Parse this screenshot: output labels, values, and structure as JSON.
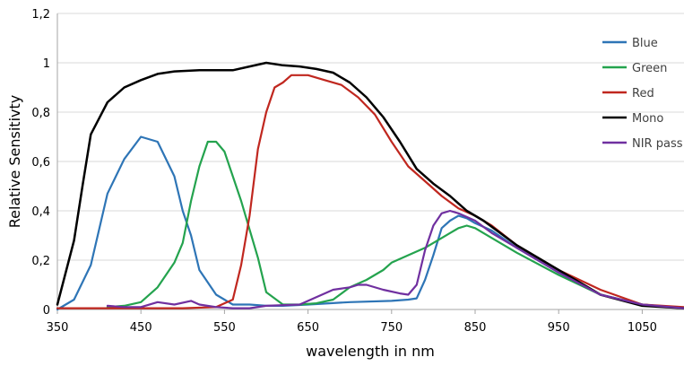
{
  "chart_data": {
    "type": "line",
    "title": "",
    "xlabel": "wavelength in nm",
    "ylabel": "Relative Sensitivty",
    "xlim": [
      350,
      1100
    ],
    "ylim": [
      0,
      1.2
    ],
    "x_ticks": [
      350,
      450,
      550,
      650,
      750,
      850,
      950,
      1050
    ],
    "x_tick_labels": [
      "350",
      "450",
      "550",
      "650",
      "750",
      "850",
      "950",
      "1050"
    ],
    "y_ticks": [
      0,
      0.2,
      0.4,
      0.6,
      0.8,
      1.0,
      1.2
    ],
    "y_tick_labels": [
      "0",
      "0,2",
      "0,4",
      "0,6",
      "0,8",
      "1",
      "1,2"
    ],
    "grid": "horizontal",
    "legend_position": "right",
    "series": [
      {
        "name": "Blue",
        "color": "#2E75B6",
        "points": [
          [
            350,
            0.0
          ],
          [
            370,
            0.04
          ],
          [
            390,
            0.18
          ],
          [
            410,
            0.47
          ],
          [
            430,
            0.61
          ],
          [
            450,
            0.7
          ],
          [
            470,
            0.68
          ],
          [
            490,
            0.54
          ],
          [
            500,
            0.4
          ],
          [
            510,
            0.3
          ],
          [
            520,
            0.16
          ],
          [
            540,
            0.06
          ],
          [
            550,
            0.04
          ],
          [
            560,
            0.02
          ],
          [
            580,
            0.02
          ],
          [
            600,
            0.015
          ],
          [
            620,
            0.015
          ],
          [
            650,
            0.02
          ],
          [
            700,
            0.03
          ],
          [
            750,
            0.035
          ],
          [
            770,
            0.04
          ],
          [
            780,
            0.045
          ],
          [
            790,
            0.12
          ],
          [
            800,
            0.22
          ],
          [
            810,
            0.33
          ],
          [
            820,
            0.36
          ],
          [
            830,
            0.38
          ],
          [
            840,
            0.37
          ],
          [
            850,
            0.35
          ],
          [
            870,
            0.32
          ],
          [
            900,
            0.25
          ],
          [
            950,
            0.15
          ],
          [
            1000,
            0.06
          ],
          [
            1050,
            0.02
          ],
          [
            1100,
            0.005
          ]
        ]
      },
      {
        "name": "Green",
        "color": "#24A34E",
        "points": [
          [
            410,
            0.01
          ],
          [
            430,
            0.015
          ],
          [
            450,
            0.03
          ],
          [
            470,
            0.09
          ],
          [
            490,
            0.19
          ],
          [
            500,
            0.27
          ],
          [
            510,
            0.44
          ],
          [
            520,
            0.58
          ],
          [
            530,
            0.68
          ],
          [
            540,
            0.68
          ],
          [
            550,
            0.64
          ],
          [
            560,
            0.54
          ],
          [
            570,
            0.44
          ],
          [
            590,
            0.21
          ],
          [
            600,
            0.07
          ],
          [
            620,
            0.02
          ],
          [
            640,
            0.02
          ],
          [
            660,
            0.025
          ],
          [
            680,
            0.04
          ],
          [
            700,
            0.09
          ],
          [
            720,
            0.12
          ],
          [
            740,
            0.16
          ],
          [
            750,
            0.19
          ],
          [
            770,
            0.22
          ],
          [
            790,
            0.25
          ],
          [
            800,
            0.27
          ],
          [
            820,
            0.31
          ],
          [
            830,
            0.33
          ],
          [
            840,
            0.34
          ],
          [
            850,
            0.33
          ],
          [
            870,
            0.29
          ],
          [
            900,
            0.23
          ],
          [
            950,
            0.14
          ],
          [
            1000,
            0.06
          ],
          [
            1050,
            0.02
          ],
          [
            1100,
            0.005
          ]
        ]
      },
      {
        "name": "Red",
        "color": "#C0271F",
        "points": [
          [
            350,
            0.005
          ],
          [
            400,
            0.005
          ],
          [
            450,
            0.005
          ],
          [
            500,
            0.005
          ],
          [
            540,
            0.01
          ],
          [
            560,
            0.04
          ],
          [
            570,
            0.18
          ],
          [
            580,
            0.38
          ],
          [
            590,
            0.65
          ],
          [
            600,
            0.8
          ],
          [
            610,
            0.9
          ],
          [
            620,
            0.92
          ],
          [
            630,
            0.95
          ],
          [
            650,
            0.95
          ],
          [
            670,
            0.93
          ],
          [
            690,
            0.91
          ],
          [
            710,
            0.86
          ],
          [
            730,
            0.79
          ],
          [
            750,
            0.68
          ],
          [
            770,
            0.58
          ],
          [
            790,
            0.52
          ],
          [
            810,
            0.46
          ],
          [
            830,
            0.41
          ],
          [
            850,
            0.38
          ],
          [
            870,
            0.34
          ],
          [
            900,
            0.26
          ],
          [
            950,
            0.16
          ],
          [
            1000,
            0.08
          ],
          [
            1050,
            0.02
          ],
          [
            1100,
            0.01
          ]
        ]
      },
      {
        "name": "Mono",
        "color": "#000000",
        "points": [
          [
            350,
            0.02
          ],
          [
            370,
            0.28
          ],
          [
            380,
            0.5
          ],
          [
            390,
            0.71
          ],
          [
            410,
            0.84
          ],
          [
            430,
            0.9
          ],
          [
            450,
            0.93
          ],
          [
            470,
            0.955
          ],
          [
            490,
            0.965
          ],
          [
            520,
            0.97
          ],
          [
            560,
            0.97
          ],
          [
            580,
            0.985
          ],
          [
            600,
            1.0
          ],
          [
            620,
            0.99
          ],
          [
            640,
            0.985
          ],
          [
            660,
            0.975
          ],
          [
            680,
            0.96
          ],
          [
            700,
            0.92
          ],
          [
            720,
            0.86
          ],
          [
            740,
            0.78
          ],
          [
            760,
            0.68
          ],
          [
            780,
            0.57
          ],
          [
            800,
            0.51
          ],
          [
            820,
            0.46
          ],
          [
            840,
            0.4
          ],
          [
            860,
            0.36
          ],
          [
            880,
            0.31
          ],
          [
            900,
            0.26
          ],
          [
            950,
            0.16
          ],
          [
            1000,
            0.06
          ],
          [
            1050,
            0.015
          ],
          [
            1100,
            0.005
          ]
        ]
      },
      {
        "name": "NIR pass",
        "color": "#7030A0",
        "points": [
          [
            410,
            0.015
          ],
          [
            430,
            0.01
          ],
          [
            450,
            0.01
          ],
          [
            470,
            0.03
          ],
          [
            490,
            0.02
          ],
          [
            510,
            0.035
          ],
          [
            520,
            0.02
          ],
          [
            540,
            0.01
          ],
          [
            560,
            0.005
          ],
          [
            580,
            0.005
          ],
          [
            600,
            0.015
          ],
          [
            640,
            0.02
          ],
          [
            660,
            0.05
          ],
          [
            680,
            0.08
          ],
          [
            700,
            0.09
          ],
          [
            710,
            0.1
          ],
          [
            720,
            0.1
          ],
          [
            740,
            0.08
          ],
          [
            760,
            0.065
          ],
          [
            770,
            0.06
          ],
          [
            780,
            0.1
          ],
          [
            790,
            0.24
          ],
          [
            800,
            0.34
          ],
          [
            810,
            0.39
          ],
          [
            820,
            0.4
          ],
          [
            830,
            0.39
          ],
          [
            850,
            0.36
          ],
          [
            870,
            0.31
          ],
          [
            900,
            0.25
          ],
          [
            950,
            0.15
          ],
          [
            1000,
            0.06
          ],
          [
            1050,
            0.02
          ],
          [
            1100,
            0.005
          ]
        ]
      }
    ]
  }
}
